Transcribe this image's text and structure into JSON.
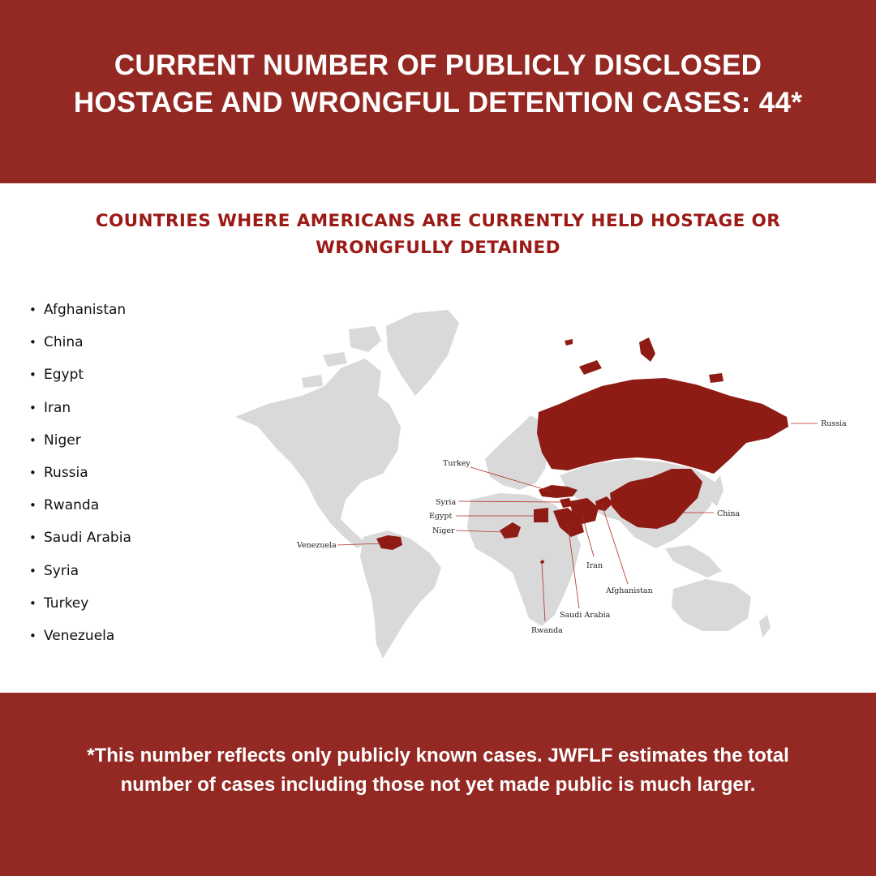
{
  "header": {
    "title_lines": [
      "CURRENT NUMBER OF PUBLICLY DISCLOSED",
      "HOSTAGE AND WRONGFUL DETENTION CASES: 44*"
    ]
  },
  "map_section": {
    "subtitle_lines": [
      "COUNTRIES WHERE AMERICANS ARE CURRENTLY HELD HOSTAGE OR",
      "WRONGFULLY DETAINED"
    ],
    "bullet_glyph": "•",
    "countries": [
      "Afghanistan",
      "China",
      "Egypt",
      "Iran",
      "Niger",
      "Russia",
      "Rwanda",
      "Saudi Arabia",
      "Syria",
      "Turkey",
      "Venezuela"
    ],
    "map_labels": {
      "russia": "Russia",
      "turkey": "Turkey",
      "syria": "Syria",
      "egypt": "Egypt",
      "niger": "Niger",
      "venezuela": "Venezuela",
      "china": "China",
      "iran": "Iran",
      "afghanistan": "Afghanistan",
      "saudi_arabia": "Saudi Arabia",
      "rwanda": "Rwanda"
    },
    "colors": {
      "highlight": "#8e1b14",
      "land": "#d9d9d9",
      "leader_line": "#b22a22"
    }
  },
  "footer": {
    "note_lines": [
      "*This number reflects only publicly known cases. JWFLF estimates the total",
      "number of cases including those not yet made public is much larger."
    ]
  }
}
